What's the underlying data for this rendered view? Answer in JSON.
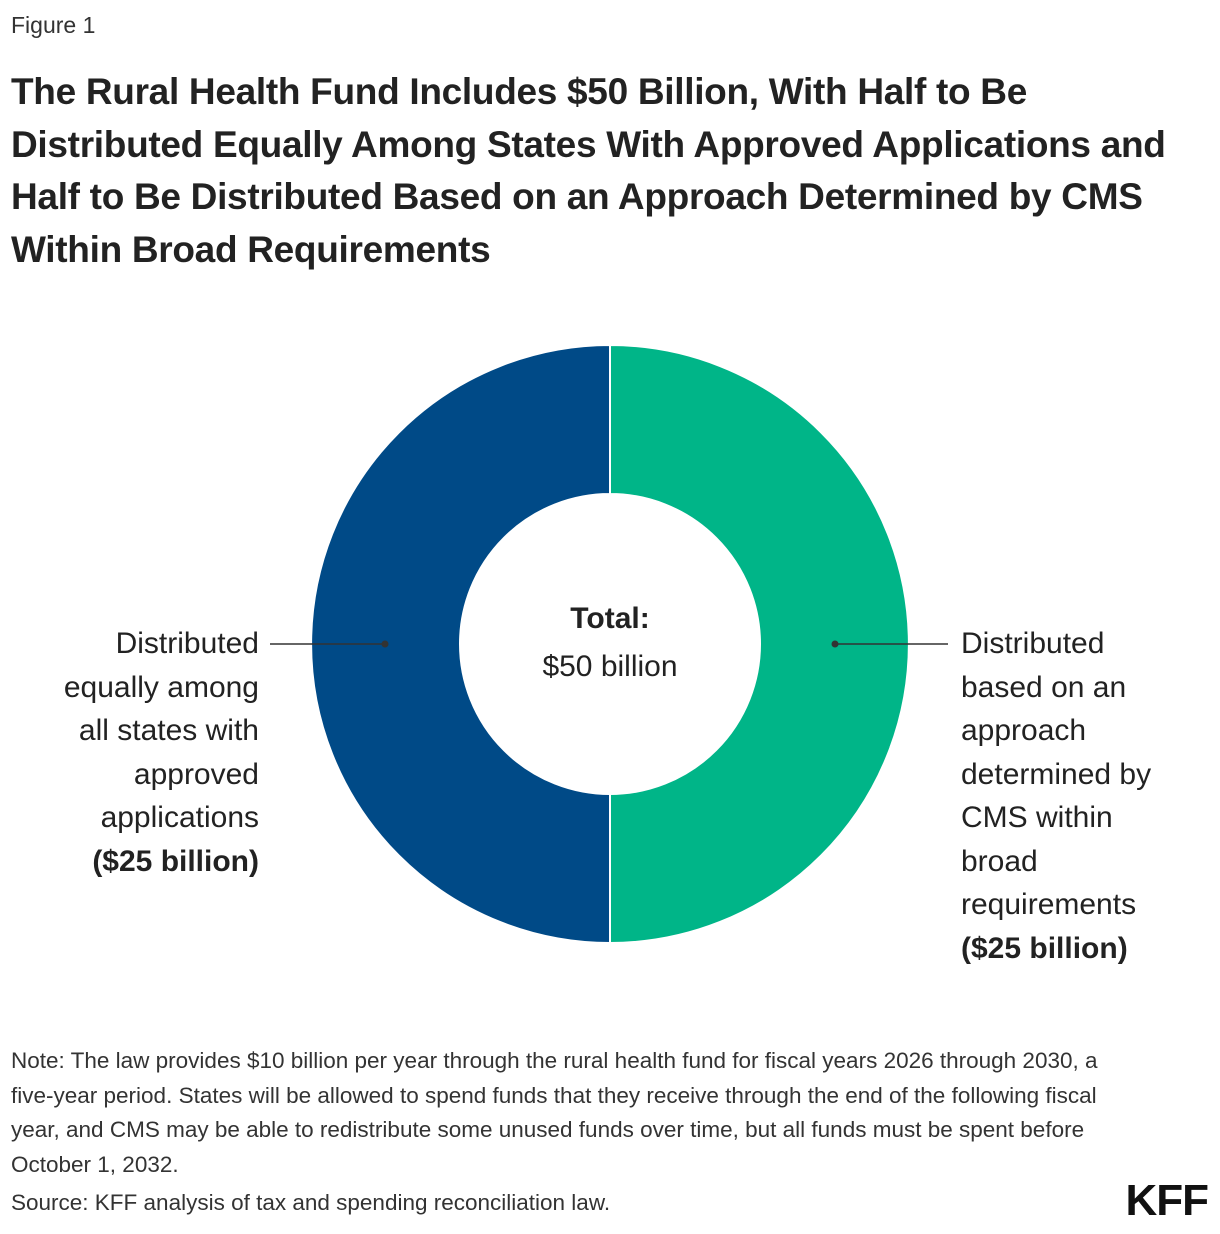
{
  "figure_label": "Figure 1",
  "title": "The Rural Health Fund Includes $50 Billion, With Half to Be Distributed Equally Among States With Approved Applications and Half to Be Distributed Based on an Approach Determined by CMS Within Broad Requirements",
  "chart_data": {
    "type": "pie",
    "donut": true,
    "center_label": {
      "heading": "Total:",
      "value": "$50 billion"
    },
    "slices": [
      {
        "label": "Distributed based on an approach determined by CMS within broad requirements",
        "amount_label": "($25 billion)",
        "value": 25,
        "color": "#00B588"
      },
      {
        "label": "Distributed equally among all states with approved applications",
        "amount_label": "($25 billion)",
        "value": 25,
        "color": "#004A87"
      }
    ],
    "label_lines": {
      "left": [
        "Distributed",
        "equally among",
        "all states with",
        "approved",
        "applications"
      ],
      "right": [
        "Distributed",
        "based on an",
        "approach",
        "determined by",
        "CMS within",
        "broad",
        "requirements"
      ]
    }
  },
  "note": "Note: The law provides $10 billion per year through the rural health fund for fiscal years 2026 through 2030, a five-year period. States will be allowed to spend funds that they receive through the end of the following fiscal year, and CMS may be able to redistribute some unused funds over time, but all funds must be spent before October 1, 2032.",
  "source": "Source: KFF analysis of tax and spending reconciliation law.",
  "logo": "KFF"
}
